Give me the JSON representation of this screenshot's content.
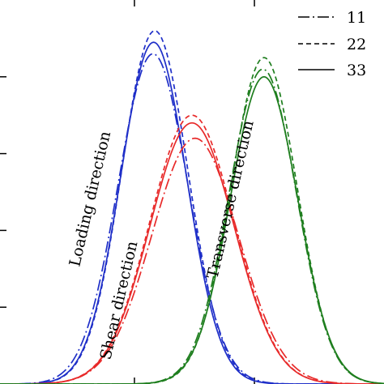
{
  "chart_data": {
    "type": "line",
    "title": "",
    "xlabel": "",
    "ylabel": "",
    "grid": false,
    "legend_position": "top-right",
    "xlim": [
      -3.2,
      3.2
    ],
    "ylim": [
      0,
      1.0
    ],
    "legend": [
      {
        "label": "11",
        "dash": "dash-dot"
      },
      {
        "label": "22",
        "dash": "dashed"
      },
      {
        "label": "33",
        "dash": "solid"
      }
    ],
    "groups": [
      {
        "name": "Loading direction",
        "color": "#1f2fc8",
        "series": [
          {
            "name": "11",
            "center": -0.65,
            "sigma": 0.58,
            "peak": 0.86
          },
          {
            "name": "22",
            "center": -0.62,
            "sigma": 0.55,
            "peak": 0.92
          },
          {
            "name": "33",
            "center": -0.64,
            "sigma": 0.55,
            "peak": 0.89
          }
        ]
      },
      {
        "name": "Shear direction",
        "color": "#e82a2a",
        "series": [
          {
            "name": "11",
            "center": 0.05,
            "sigma": 0.72,
            "peak": 0.64
          },
          {
            "name": "22",
            "center": 0.0,
            "sigma": 0.7,
            "peak": 0.7
          },
          {
            "name": "33",
            "center": 0.0,
            "sigma": 0.7,
            "peak": 0.68
          }
        ]
      },
      {
        "name": "Transverse direction",
        "color": "#1e7e1e",
        "series": [
          {
            "name": "11",
            "center": 1.18,
            "sigma": 0.56,
            "peak": 0.82
          },
          {
            "name": "22",
            "center": 1.2,
            "sigma": 0.55,
            "peak": 0.85
          },
          {
            "name": "33",
            "center": 1.2,
            "sigma": 0.56,
            "peak": 0.8
          }
        ]
      }
    ]
  }
}
